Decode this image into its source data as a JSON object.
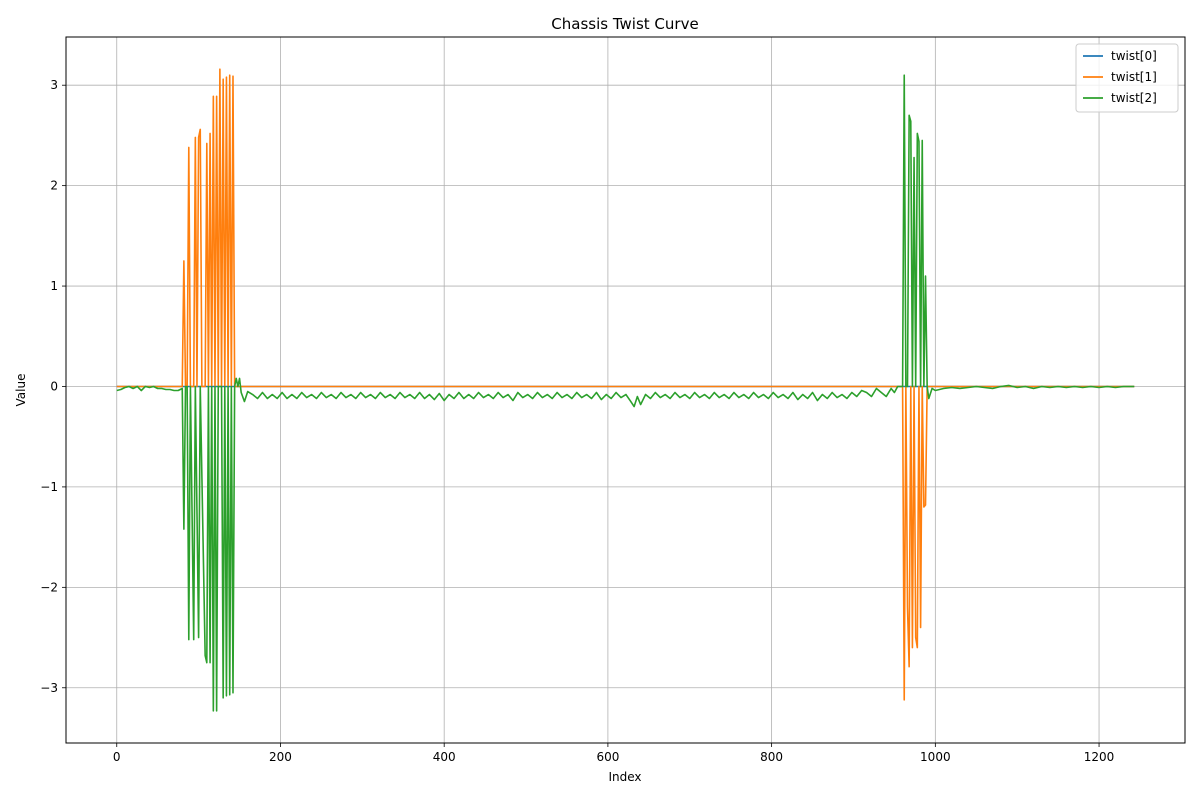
{
  "chart_data": {
    "type": "line",
    "title": "Chassis Twist Curve",
    "xlabel": "Index",
    "ylabel": "Value",
    "xlim": [
      -62,
      1305
    ],
    "ylim": [
      -3.55,
      3.48
    ],
    "xticks": [
      0,
      200,
      400,
      600,
      800,
      1000,
      1200
    ],
    "yticks": [
      -3,
      -2,
      -1,
      0,
      1,
      2,
      3
    ],
    "xtick_labels": [
      "0",
      "200",
      "400",
      "600",
      "800",
      "1000",
      "1200"
    ],
    "ytick_labels": [
      "−3",
      "−2",
      "−1",
      "0",
      "1",
      "2",
      "3"
    ],
    "grid": true,
    "legend_position": "top-right",
    "series": [
      {
        "name": "twist[0]",
        "color": "#1f77b4",
        "points": [
          [
            0,
            0
          ],
          [
            100,
            0
          ],
          [
            200,
            0
          ],
          [
            400,
            0
          ],
          [
            600,
            0
          ],
          [
            800,
            0
          ],
          [
            1000,
            0
          ],
          [
            1243,
            0
          ]
        ]
      },
      {
        "name": "twist[1]",
        "color": "#ff7f0e",
        "points": [
          [
            0,
            0
          ],
          [
            80,
            0
          ],
          [
            82,
            1.25
          ],
          [
            84,
            0
          ],
          [
            86,
            0
          ],
          [
            88,
            2.38
          ],
          [
            90,
            0
          ],
          [
            94,
            0
          ],
          [
            96,
            2.48
          ],
          [
            98,
            0
          ],
          [
            100,
            2.48
          ],
          [
            102,
            2.56
          ],
          [
            104,
            0
          ],
          [
            108,
            0
          ],
          [
            110,
            2.42
          ],
          [
            112,
            0
          ],
          [
            114,
            2.52
          ],
          [
            116,
            0
          ],
          [
            118,
            2.89
          ],
          [
            120,
            0
          ],
          [
            122,
            2.89
          ],
          [
            124,
            0
          ],
          [
            126,
            3.16
          ],
          [
            128,
            0
          ],
          [
            130,
            3.06
          ],
          [
            132,
            0
          ],
          [
            134,
            3.08
          ],
          [
            136,
            0
          ],
          [
            138,
            3.1
          ],
          [
            140,
            0
          ],
          [
            142,
            3.09
          ],
          [
            144,
            0
          ],
          [
            150,
            0
          ],
          [
            960,
            0
          ],
          [
            962,
            -3.12
          ],
          [
            964,
            0
          ],
          [
            966,
            -2.2
          ],
          [
            968,
            -2.79
          ],
          [
            970,
            0
          ],
          [
            972,
            -2.6
          ],
          [
            974,
            0
          ],
          [
            976,
            -2.5
          ],
          [
            978,
            -2.6
          ],
          [
            980,
            0
          ],
          [
            982,
            -2.4
          ],
          [
            984,
            0
          ],
          [
            986,
            -1.2
          ],
          [
            988,
            -1.18
          ],
          [
            990,
            0
          ],
          [
            1243,
            0
          ]
        ]
      },
      {
        "name": "twist[2]",
        "color": "#2ca02c",
        "points": [
          [
            0,
            -0.04
          ],
          [
            5,
            -0.03
          ],
          [
            10,
            -0.01
          ],
          [
            15,
            0
          ],
          [
            20,
            -0.02
          ],
          [
            25,
            0
          ],
          [
            30,
            -0.04
          ],
          [
            35,
            0
          ],
          [
            40,
            -0.01
          ],
          [
            45,
            0
          ],
          [
            50,
            -0.02
          ],
          [
            55,
            -0.02
          ],
          [
            60,
            -0.03
          ],
          [
            65,
            -0.03
          ],
          [
            70,
            -0.04
          ],
          [
            75,
            -0.04
          ],
          [
            80,
            -0.02
          ],
          [
            82,
            -1.42
          ],
          [
            84,
            0
          ],
          [
            86,
            0
          ],
          [
            88,
            -2.52
          ],
          [
            90,
            0
          ],
          [
            94,
            -2.52
          ],
          [
            96,
            0
          ],
          [
            100,
            -2.5
          ],
          [
            102,
            0
          ],
          [
            108,
            -2.68
          ],
          [
            110,
            -2.75
          ],
          [
            112,
            0
          ],
          [
            114,
            -2.75
          ],
          [
            116,
            0
          ],
          [
            118,
            -3.23
          ],
          [
            120,
            0
          ],
          [
            122,
            -3.23
          ],
          [
            124,
            0
          ],
          [
            128,
            0
          ],
          [
            130,
            -3.1
          ],
          [
            132,
            0
          ],
          [
            134,
            -3.08
          ],
          [
            136,
            0
          ],
          [
            138,
            -3.07
          ],
          [
            140,
            0
          ],
          [
            142,
            -3.05
          ],
          [
            144,
            0
          ],
          [
            146,
            0.08
          ],
          [
            148,
            0
          ],
          [
            150,
            0.08
          ],
          [
            152,
            -0.06
          ],
          [
            156,
            -0.15
          ],
          [
            160,
            -0.05
          ],
          [
            166,
            -0.08
          ],
          [
            172,
            -0.12
          ],
          [
            178,
            -0.06
          ],
          [
            184,
            -0.12
          ],
          [
            190,
            -0.08
          ],
          [
            196,
            -0.12
          ],
          [
            202,
            -0.06
          ],
          [
            208,
            -0.12
          ],
          [
            214,
            -0.08
          ],
          [
            220,
            -0.12
          ],
          [
            226,
            -0.06
          ],
          [
            232,
            -0.11
          ],
          [
            238,
            -0.08
          ],
          [
            244,
            -0.12
          ],
          [
            250,
            -0.06
          ],
          [
            256,
            -0.11
          ],
          [
            262,
            -0.08
          ],
          [
            268,
            -0.12
          ],
          [
            274,
            -0.06
          ],
          [
            280,
            -0.11
          ],
          [
            286,
            -0.08
          ],
          [
            292,
            -0.12
          ],
          [
            298,
            -0.06
          ],
          [
            304,
            -0.11
          ],
          [
            310,
            -0.08
          ],
          [
            316,
            -0.12
          ],
          [
            322,
            -0.06
          ],
          [
            328,
            -0.11
          ],
          [
            334,
            -0.08
          ],
          [
            340,
            -0.12
          ],
          [
            346,
            -0.06
          ],
          [
            352,
            -0.11
          ],
          [
            358,
            -0.08
          ],
          [
            364,
            -0.12
          ],
          [
            370,
            -0.06
          ],
          [
            376,
            -0.12
          ],
          [
            382,
            -0.08
          ],
          [
            388,
            -0.13
          ],
          [
            394,
            -0.07
          ],
          [
            400,
            -0.14
          ],
          [
            406,
            -0.08
          ],
          [
            412,
            -0.12
          ],
          [
            418,
            -0.06
          ],
          [
            424,
            -0.12
          ],
          [
            430,
            -0.08
          ],
          [
            436,
            -0.12
          ],
          [
            442,
            -0.06
          ],
          [
            448,
            -0.11
          ],
          [
            454,
            -0.08
          ],
          [
            460,
            -0.12
          ],
          [
            466,
            -0.06
          ],
          [
            472,
            -0.11
          ],
          [
            478,
            -0.08
          ],
          [
            484,
            -0.14
          ],
          [
            490,
            -0.06
          ],
          [
            496,
            -0.11
          ],
          [
            502,
            -0.08
          ],
          [
            508,
            -0.12
          ],
          [
            514,
            -0.06
          ],
          [
            520,
            -0.11
          ],
          [
            526,
            -0.08
          ],
          [
            532,
            -0.12
          ],
          [
            538,
            -0.06
          ],
          [
            544,
            -0.11
          ],
          [
            550,
            -0.08
          ],
          [
            556,
            -0.12
          ],
          [
            562,
            -0.06
          ],
          [
            568,
            -0.11
          ],
          [
            574,
            -0.08
          ],
          [
            580,
            -0.12
          ],
          [
            586,
            -0.06
          ],
          [
            592,
            -0.13
          ],
          [
            598,
            -0.08
          ],
          [
            604,
            -0.12
          ],
          [
            610,
            -0.06
          ],
          [
            616,
            -0.11
          ],
          [
            622,
            -0.08
          ],
          [
            628,
            -0.15
          ],
          [
            632,
            -0.2
          ],
          [
            636,
            -0.1
          ],
          [
            640,
            -0.18
          ],
          [
            646,
            -0.08
          ],
          [
            652,
            -0.12
          ],
          [
            658,
            -0.06
          ],
          [
            664,
            -0.11
          ],
          [
            670,
            -0.08
          ],
          [
            676,
            -0.12
          ],
          [
            682,
            -0.06
          ],
          [
            688,
            -0.11
          ],
          [
            694,
            -0.08
          ],
          [
            700,
            -0.12
          ],
          [
            706,
            -0.06
          ],
          [
            712,
            -0.11
          ],
          [
            718,
            -0.08
          ],
          [
            724,
            -0.12
          ],
          [
            730,
            -0.06
          ],
          [
            736,
            -0.11
          ],
          [
            742,
            -0.08
          ],
          [
            748,
            -0.12
          ],
          [
            754,
            -0.06
          ],
          [
            760,
            -0.11
          ],
          [
            766,
            -0.08
          ],
          [
            772,
            -0.12
          ],
          [
            778,
            -0.06
          ],
          [
            784,
            -0.11
          ],
          [
            790,
            -0.08
          ],
          [
            796,
            -0.12
          ],
          [
            802,
            -0.06
          ],
          [
            808,
            -0.11
          ],
          [
            814,
            -0.08
          ],
          [
            820,
            -0.12
          ],
          [
            826,
            -0.06
          ],
          [
            832,
            -0.13
          ],
          [
            838,
            -0.08
          ],
          [
            844,
            -0.12
          ],
          [
            850,
            -0.06
          ],
          [
            856,
            -0.14
          ],
          [
            862,
            -0.08
          ],
          [
            868,
            -0.12
          ],
          [
            874,
            -0.06
          ],
          [
            880,
            -0.11
          ],
          [
            886,
            -0.08
          ],
          [
            892,
            -0.12
          ],
          [
            898,
            -0.06
          ],
          [
            904,
            -0.1
          ],
          [
            910,
            -0.04
          ],
          [
            916,
            -0.06
          ],
          [
            922,
            -0.1
          ],
          [
            928,
            -0.02
          ],
          [
            934,
            -0.06
          ],
          [
            940,
            -0.1
          ],
          [
            946,
            -0.02
          ],
          [
            950,
            -0.06
          ],
          [
            954,
            0
          ],
          [
            958,
            0
          ],
          [
            960,
            0
          ],
          [
            962,
            3.1
          ],
          [
            964,
            0
          ],
          [
            966,
            0
          ],
          [
            968,
            2.7
          ],
          [
            970,
            2.64
          ],
          [
            972,
            0
          ],
          [
            974,
            2.28
          ],
          [
            976,
            0
          ],
          [
            978,
            2.52
          ],
          [
            980,
            2.44
          ],
          [
            982,
            0
          ],
          [
            984,
            2.45
          ],
          [
            986,
            0
          ],
          [
            988,
            1.1
          ],
          [
            990,
            0
          ],
          [
            992,
            -0.12
          ],
          [
            996,
            -0.02
          ],
          [
            1000,
            -0.04
          ],
          [
            1010,
            -0.02
          ],
          [
            1020,
            -0.01
          ],
          [
            1030,
            -0.02
          ],
          [
            1040,
            -0.01
          ],
          [
            1050,
            0
          ],
          [
            1060,
            -0.01
          ],
          [
            1070,
            -0.02
          ],
          [
            1080,
            0
          ],
          [
            1090,
            0.01
          ],
          [
            1100,
            -0.01
          ],
          [
            1110,
            0
          ],
          [
            1120,
            -0.02
          ],
          [
            1130,
            0
          ],
          [
            1140,
            -0.01
          ],
          [
            1150,
            0
          ],
          [
            1160,
            -0.01
          ],
          [
            1170,
            0
          ],
          [
            1180,
            -0.01
          ],
          [
            1190,
            0
          ],
          [
            1200,
            -0.01
          ],
          [
            1210,
            0
          ],
          [
            1220,
            -0.01
          ],
          [
            1230,
            0
          ],
          [
            1243,
            0
          ]
        ]
      }
    ]
  }
}
